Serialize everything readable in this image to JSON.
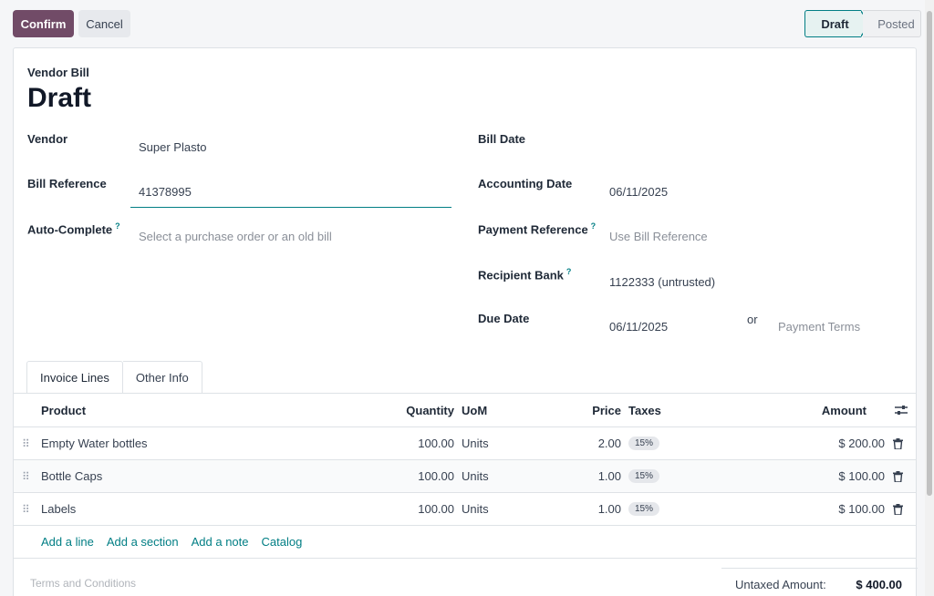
{
  "actions": {
    "confirm_label": "Confirm",
    "cancel_label": "Cancel"
  },
  "status": {
    "stages": [
      "Draft",
      "Posted"
    ],
    "current": "Draft"
  },
  "document": {
    "type_label": "Vendor Bill",
    "title": "Draft"
  },
  "fields": {
    "vendor": {
      "label": "Vendor",
      "value": "Super Plasto"
    },
    "bill_reference": {
      "label": "Bill Reference",
      "value": "41378995"
    },
    "auto_complete": {
      "label": "Auto-Complete",
      "help": "?",
      "placeholder": "Select a purchase order or an old bill"
    },
    "bill_date": {
      "label": "Bill Date",
      "value": ""
    },
    "accounting_date": {
      "label": "Accounting Date",
      "value": "06/11/2025"
    },
    "payment_reference": {
      "label": "Payment Reference",
      "help": "?",
      "placeholder": "Use Bill Reference"
    },
    "recipient_bank": {
      "label": "Recipient Bank",
      "help": "?",
      "value": "1122333 (untrusted)"
    },
    "due_date": {
      "label": "Due Date",
      "value": "06/11/2025",
      "or_label": "or",
      "terms_placeholder": "Payment Terms"
    }
  },
  "tabs": [
    {
      "label": "Invoice Lines",
      "active": true
    },
    {
      "label": "Other Info",
      "active": false
    }
  ],
  "table": {
    "columns": {
      "product": "Product",
      "quantity": "Quantity",
      "uom": "UoM",
      "price": "Price",
      "taxes": "Taxes",
      "amount": "Amount"
    },
    "rows": [
      {
        "product": "Empty Water bottles",
        "quantity": "100.00",
        "uom": "Units",
        "price": "2.00",
        "taxes": "15%",
        "amount": "$ 200.00"
      },
      {
        "product": "Bottle Caps",
        "quantity": "100.00",
        "uom": "Units",
        "price": "1.00",
        "taxes": "15%",
        "amount": "$ 100.00"
      },
      {
        "product": "Labels",
        "quantity": "100.00",
        "uom": "Units",
        "price": "1.00",
        "taxes": "15%",
        "amount": "$ 100.00"
      }
    ],
    "add_links": {
      "line": "Add a line",
      "section": "Add a section",
      "note": "Add a note",
      "catalog": "Catalog"
    }
  },
  "footer": {
    "terms_placeholder": "Terms and Conditions",
    "untaxed_label": "Untaxed Amount:",
    "untaxed_value": "$ 400.00"
  },
  "colors": {
    "primary": "#714b67",
    "accent": "#017e84"
  },
  "icons": {
    "drag_handle": "drag-handle-icon",
    "delete": "trash-icon",
    "column_settings": "sliders-icon"
  }
}
